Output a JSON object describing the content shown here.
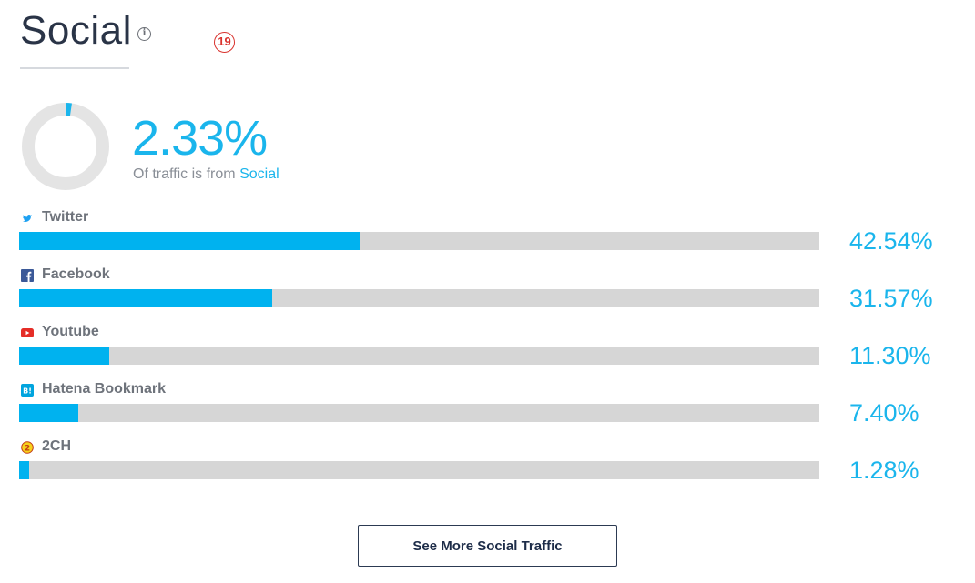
{
  "header": {
    "title": "Social",
    "info_icon_glyph": "i",
    "badge": "19"
  },
  "summary": {
    "percent_value": 2.33,
    "percent_label": "2.33%",
    "subtext_prefix": "Of traffic is from ",
    "subtext_highlight": "Social",
    "donut_track_color": "#e4e4e4",
    "donut_fill_color": "#1ab5ec"
  },
  "channels": [
    {
      "name": "Twitter",
      "icon": "twitter-icon",
      "percent_label": "42.54%",
      "value": 42.54
    },
    {
      "name": "Facebook",
      "icon": "facebook-icon",
      "percent_label": "31.57%",
      "value": 31.57
    },
    {
      "name": "Youtube",
      "icon": "youtube-icon",
      "percent_label": "11.30%",
      "value": 11.3
    },
    {
      "name": "Hatena Bookmark",
      "icon": "hatena-bookmark-icon",
      "percent_label": "7.40%",
      "value": 7.4
    },
    {
      "name": "2CH",
      "icon": "2ch-icon",
      "percent_label": "1.28%",
      "value": 1.28
    }
  ],
  "colors": {
    "accent": "#1ab5ec",
    "bar_fill": "#00b2ef",
    "bar_track": "#d6d6d6"
  },
  "button": {
    "label": "See More Social Traffic"
  }
}
